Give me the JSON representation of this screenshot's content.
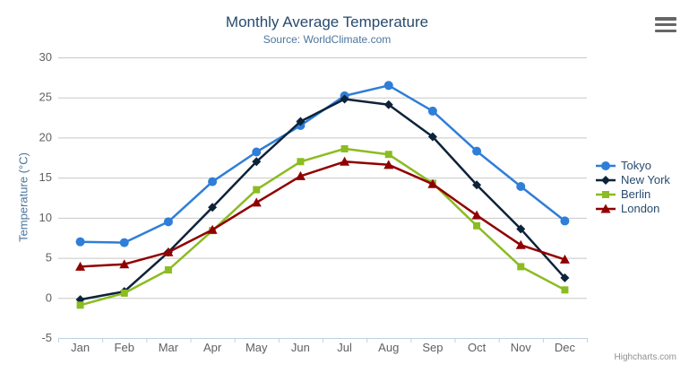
{
  "header": {
    "title": "Monthly Average Temperature",
    "subtitle": "Source: WorldClimate.com"
  },
  "credits": {
    "label": "Highcharts.com"
  },
  "colors": {
    "title": "#274b6d",
    "subtitle": "#4d759e",
    "axis_title": "#4d759e",
    "axis_label": "#606060",
    "legend_text": "#274b6d",
    "grid_line": "#c8c8c8",
    "axis_line": "#c0d0e0",
    "credits_text": "#909090",
    "menu_icon": "#666666"
  },
  "chart_data": {
    "type": "line",
    "title": "Monthly Average Temperature",
    "subtitle": "Source: WorldClimate.com",
    "xlabel": "",
    "ylabel": "Temperature (°C)",
    "ylim": [
      -5,
      30
    ],
    "ytick_interval": 5,
    "yticks": [
      30,
      25,
      20,
      15,
      10,
      5,
      0,
      -5
    ],
    "grid": true,
    "legend_position": "right",
    "categories": [
      "Jan",
      "Feb",
      "Mar",
      "Apr",
      "May",
      "Jun",
      "Jul",
      "Aug",
      "Sep",
      "Oct",
      "Nov",
      "Dec"
    ],
    "series": [
      {
        "name": "Tokyo",
        "color": "#2f7ed8",
        "marker": "circle",
        "values": [
          7.0,
          6.9,
          9.5,
          14.5,
          18.2,
          21.5,
          25.2,
          26.5,
          23.3,
          18.3,
          13.9,
          9.6
        ]
      },
      {
        "name": "New York",
        "color": "#0d233a",
        "marker": "diamond",
        "values": [
          -0.2,
          0.8,
          5.7,
          11.3,
          17.0,
          22.0,
          24.8,
          24.1,
          20.1,
          14.1,
          8.6,
          2.5
        ]
      },
      {
        "name": "Berlin",
        "color": "#8bbc21",
        "marker": "square",
        "values": [
          -0.9,
          0.6,
          3.5,
          8.4,
          13.5,
          17.0,
          18.6,
          17.9,
          14.3,
          9.0,
          3.9,
          1.0
        ]
      },
      {
        "name": "London",
        "color": "#910000",
        "marker": "triangle",
        "values": [
          3.9,
          4.2,
          5.7,
          8.5,
          11.9,
          15.2,
          17.0,
          16.6,
          14.2,
          10.3,
          6.6,
          4.8
        ]
      }
    ]
  }
}
